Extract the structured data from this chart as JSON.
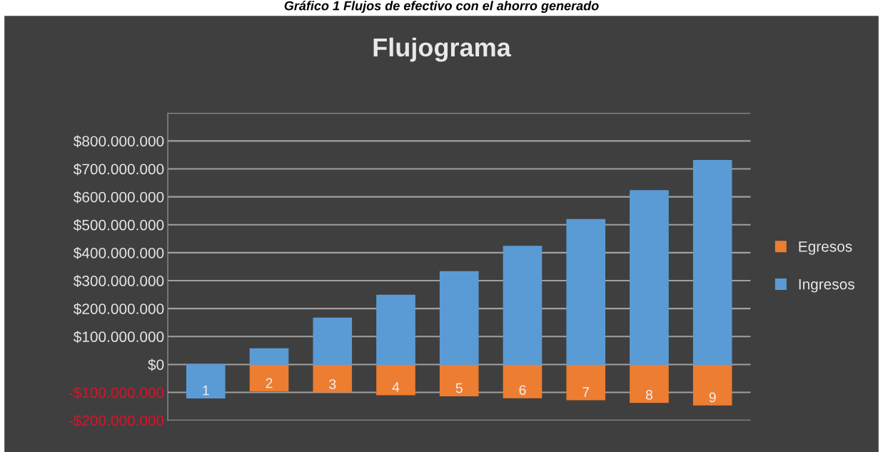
{
  "chart_data": {
    "type": "bar",
    "title": "Flujograma",
    "annotations": [
      "Gráfico 1 Flujos de efectivo con el ahorro generado"
    ],
    "categories": [
      "1",
      "2",
      "3",
      "4",
      "5",
      "6",
      "7",
      "8",
      "9"
    ],
    "stacked": true,
    "series": [
      {
        "name": "Egresos",
        "color": "#ed7d31",
        "values": [
          null,
          -94000000,
          -98000000,
          -108000000,
          -112000000,
          -119000000,
          -126000000,
          -136000000,
          -145000000
        ]
      },
      {
        "name": "Ingresos",
        "color": "#5b9bd5",
        "values": [
          -120000000,
          56000000,
          166000000,
          248000000,
          332000000,
          423000000,
          519000000,
          622000000,
          730000000
        ]
      }
    ],
    "ylim": [
      -200000000,
      900000000
    ],
    "yticks": [
      {
        "value": -200000000,
        "label": "-$200.000.000"
      },
      {
        "value": -100000000,
        "label": "-$100.000.000"
      },
      {
        "value": 0,
        "label": "$0"
      },
      {
        "value": 100000000,
        "label": "$100.000.000"
      },
      {
        "value": 200000000,
        "label": "$200.000.000"
      },
      {
        "value": 300000000,
        "label": "$300.000.000"
      },
      {
        "value": 400000000,
        "label": "$400.000.000"
      },
      {
        "value": 500000000,
        "label": "$500.000.000"
      },
      {
        "value": 600000000,
        "label": "$600.000.000"
      },
      {
        "value": 700000000,
        "label": "$700.000.000"
      },
      {
        "value": 800000000,
        "label": "$800.000.000"
      },
      {
        "value": 900000000,
        "label": null
      }
    ],
    "grid": "y",
    "legend": "right"
  }
}
